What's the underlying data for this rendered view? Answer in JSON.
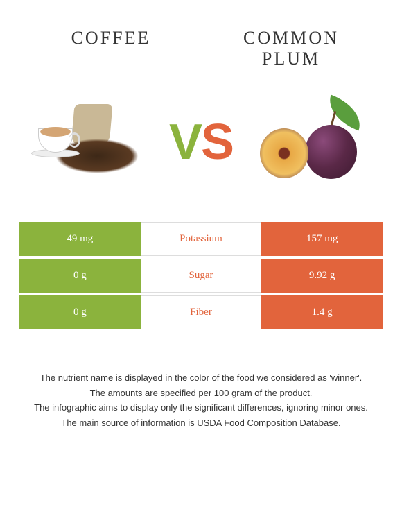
{
  "left_food": {
    "name": "COFFEE",
    "color": "#8bb33d"
  },
  "right_food": {
    "name": "COMMON PLUM",
    "color": "#e2643c"
  },
  "vs_text": {
    "v": "V",
    "s": "S"
  },
  "nutrients": [
    {
      "label": "Potassium",
      "left_value": "49 mg",
      "right_value": "157 mg",
      "winner": "right"
    },
    {
      "label": "Sugar",
      "left_value": "0 g",
      "right_value": "9.92 g",
      "winner": "right"
    },
    {
      "label": "Fiber",
      "left_value": "0 g",
      "right_value": "1.4 g",
      "winner": "right"
    }
  ],
  "footer": {
    "line1": "The nutrient name is displayed in the color of the food we considered as 'winner'.",
    "line2": "The amounts are specified per 100 gram of the product.",
    "line3": "The infographic aims to display only the significant differences, ignoring minor ones.",
    "line4": "The main source of information is USDA Food Composition Database."
  },
  "colors": {
    "left_bg": "#8bb33d",
    "right_bg": "#e2643c",
    "text": "#333333"
  }
}
